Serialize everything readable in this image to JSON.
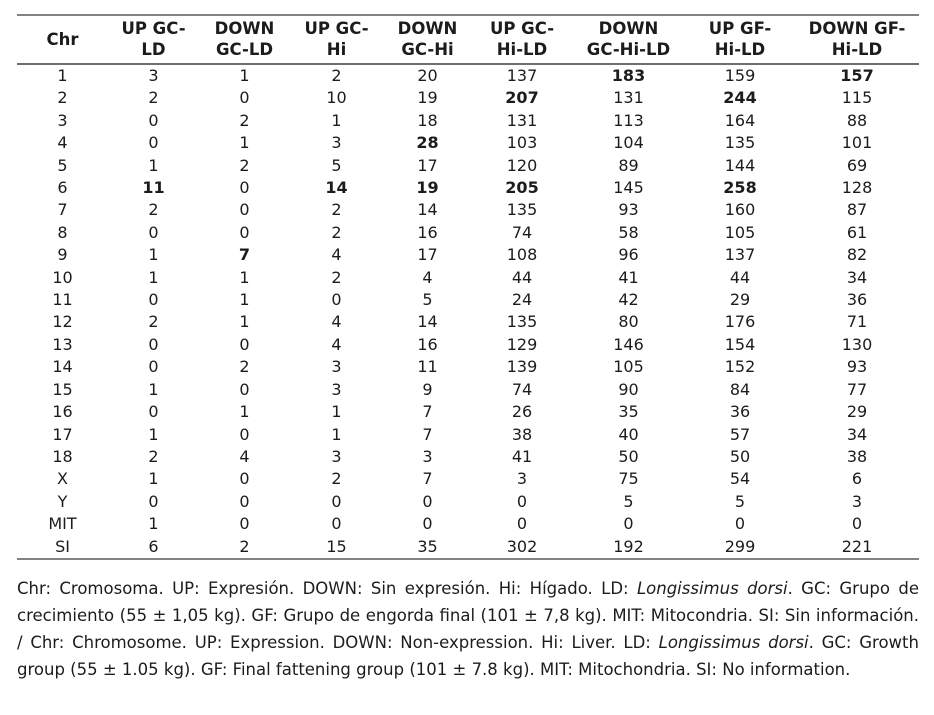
{
  "table": {
    "columns": [
      {
        "lines": [
          "Chr"
        ]
      },
      {
        "lines": [
          "UP GC-",
          "LD"
        ]
      },
      {
        "lines": [
          "DOWN",
          "GC-LD"
        ]
      },
      {
        "lines": [
          "UP GC-",
          "Hi"
        ]
      },
      {
        "lines": [
          "DOWN",
          "GC-Hi"
        ]
      },
      {
        "lines": [
          "UP GC-",
          "Hi-LD"
        ]
      },
      {
        "lines": [
          "DOWN",
          "GC-Hi-LD"
        ]
      },
      {
        "lines": [
          "UP GF-",
          "Hi-LD"
        ]
      },
      {
        "lines": [
          "DOWN GF-",
          "Hi-LD"
        ]
      }
    ],
    "rows": [
      {
        "chr": "1",
        "values": [
          "3",
          "1",
          "2",
          "20",
          "137",
          "183",
          "159",
          "157"
        ],
        "bold": [
          5,
          7
        ]
      },
      {
        "chr": "2",
        "values": [
          "2",
          "0",
          "10",
          "19",
          "207",
          "131",
          "244",
          "115"
        ],
        "bold": [
          4,
          6
        ]
      },
      {
        "chr": "3",
        "values": [
          "0",
          "2",
          "1",
          "18",
          "131",
          "113",
          "164",
          "88"
        ],
        "bold": []
      },
      {
        "chr": "4",
        "values": [
          "0",
          "1",
          "3",
          "28",
          "103",
          "104",
          "135",
          "101"
        ],
        "bold": [
          3
        ]
      },
      {
        "chr": "5",
        "values": [
          "1",
          "2",
          "5",
          "17",
          "120",
          "89",
          "144",
          "69"
        ],
        "bold": []
      },
      {
        "chr": "6",
        "values": [
          "11",
          "0",
          "14",
          "19",
          "205",
          "145",
          "258",
          "128"
        ],
        "bold": [
          0,
          2,
          3,
          4,
          6
        ]
      },
      {
        "chr": "7",
        "values": [
          "2",
          "0",
          "2",
          "14",
          "135",
          "93",
          "160",
          "87"
        ],
        "bold": []
      },
      {
        "chr": "8",
        "values": [
          "0",
          "0",
          "2",
          "16",
          "74",
          "58",
          "105",
          "61"
        ],
        "bold": []
      },
      {
        "chr": "9",
        "values": [
          "1",
          "7",
          "4",
          "17",
          "108",
          "96",
          "137",
          "82"
        ],
        "bold": [
          1
        ]
      },
      {
        "chr": "10",
        "values": [
          "1",
          "1",
          "2",
          "4",
          "44",
          "41",
          "44",
          "34"
        ],
        "bold": []
      },
      {
        "chr": "11",
        "values": [
          "0",
          "1",
          "0",
          "5",
          "24",
          "42",
          "29",
          "36"
        ],
        "bold": []
      },
      {
        "chr": "12",
        "values": [
          "2",
          "1",
          "4",
          "14",
          "135",
          "80",
          "176",
          "71"
        ],
        "bold": []
      },
      {
        "chr": "13",
        "values": [
          "0",
          "0",
          "4",
          "16",
          "129",
          "146",
          "154",
          "130"
        ],
        "bold": []
      },
      {
        "chr": "14",
        "values": [
          "0",
          "2",
          "3",
          "11",
          "139",
          "105",
          "152",
          "93"
        ],
        "bold": []
      },
      {
        "chr": "15",
        "values": [
          "1",
          "0",
          "3",
          "9",
          "74",
          "90",
          "84",
          "77"
        ],
        "bold": []
      },
      {
        "chr": "16",
        "values": [
          "0",
          "1",
          "1",
          "7",
          "26",
          "35",
          "36",
          "29"
        ],
        "bold": []
      },
      {
        "chr": "17",
        "values": [
          "1",
          "0",
          "1",
          "7",
          "38",
          "40",
          "57",
          "34"
        ],
        "bold": []
      },
      {
        "chr": "18",
        "values": [
          "2",
          "4",
          "3",
          "3",
          "41",
          "50",
          "50",
          "38"
        ],
        "bold": []
      },
      {
        "chr": "X",
        "values": [
          "1",
          "0",
          "2",
          "7",
          "3",
          "75",
          "54",
          "6"
        ],
        "bold": []
      },
      {
        "chr": "Y",
        "values": [
          "0",
          "0",
          "0",
          "0",
          "0",
          "5",
          "5",
          "3"
        ],
        "bold": []
      },
      {
        "chr": "MIT",
        "values": [
          "1",
          "0",
          "0",
          "0",
          "0",
          "0",
          "0",
          "0"
        ],
        "bold": []
      },
      {
        "chr": "SI",
        "values": [
          "6",
          "2",
          "15",
          "35",
          "302",
          "192",
          "299",
          "221"
        ],
        "bold": []
      }
    ]
  },
  "footnote": {
    "segments": [
      {
        "text": "Chr: Cromosoma. UP: Expresión. DOWN: Sin expresión. Hi: Hígado. LD: ",
        "italic": false
      },
      {
        "text": "Longissimus dorsi",
        "italic": true
      },
      {
        "text": ". GC: Grupo de crecimiento (55 ± 1,05 kg). GF: Grupo de engorda final (101 ± 7,8 kg). MIT: Mitocondria. SI: Sin información. / Chr: Chromosome. UP: Expression. DOWN: Non-expression. Hi: Liver. LD: ",
        "italic": false
      },
      {
        "text": "Longissimus dorsi",
        "italic": true
      },
      {
        "text": ". GC: Growth group (55 ± 1.05 kg). GF: Final fattening group (101 ± 7.8 kg). MIT: Mitochondria. SI: No information.",
        "italic": false
      }
    ]
  },
  "colors": {
    "text": "#1c1c1c",
    "rule": "#828282",
    "background": "#ffffff"
  }
}
